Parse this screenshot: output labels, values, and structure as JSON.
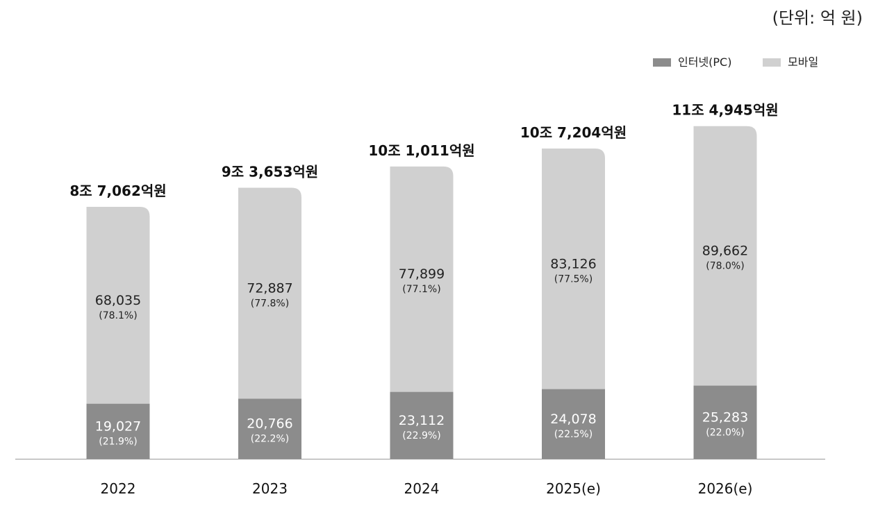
{
  "chart_data": {
    "type": "bar",
    "stacked": true,
    "unit_label": "(단위: 억 원)",
    "categories": [
      "2022",
      "2023",
      "2024",
      "2025(e)",
      "2026(e)"
    ],
    "totals": [
      87062,
      93653,
      101011,
      107204,
      114945
    ],
    "total_labels": [
      "8조 7,062억원",
      "9조 3,653억원",
      "10조 1,011억원",
      "10조 7,204억원",
      "11조 4,945억원"
    ],
    "series": [
      {
        "name": "인터넷(PC)",
        "color": "#8c8c8c",
        "values": [
          19027,
          20766,
          23112,
          24078,
          25283
        ],
        "value_labels": [
          "19,027",
          "20,766",
          "23,112",
          "24,078",
          "25,283"
        ],
        "pct_labels": [
          "(21.9%)",
          "(22.2%)",
          "(22.9%)",
          "(22.5%)",
          "(22.0%)"
        ]
      },
      {
        "name": "모바일",
        "color": "#d0d0d0",
        "values": [
          68035,
          72887,
          77899,
          83126,
          89662
        ],
        "value_labels": [
          "68,035",
          "72,887",
          "77,899",
          "83,126",
          "89,662"
        ],
        "pct_labels": [
          "(78.1%)",
          "(77.8%)",
          "(77.1%)",
          "(77.5%)",
          "(78.0%)"
        ]
      }
    ],
    "ylim": [
      0,
      125000
    ],
    "grid": false,
    "legend": "top-right"
  }
}
